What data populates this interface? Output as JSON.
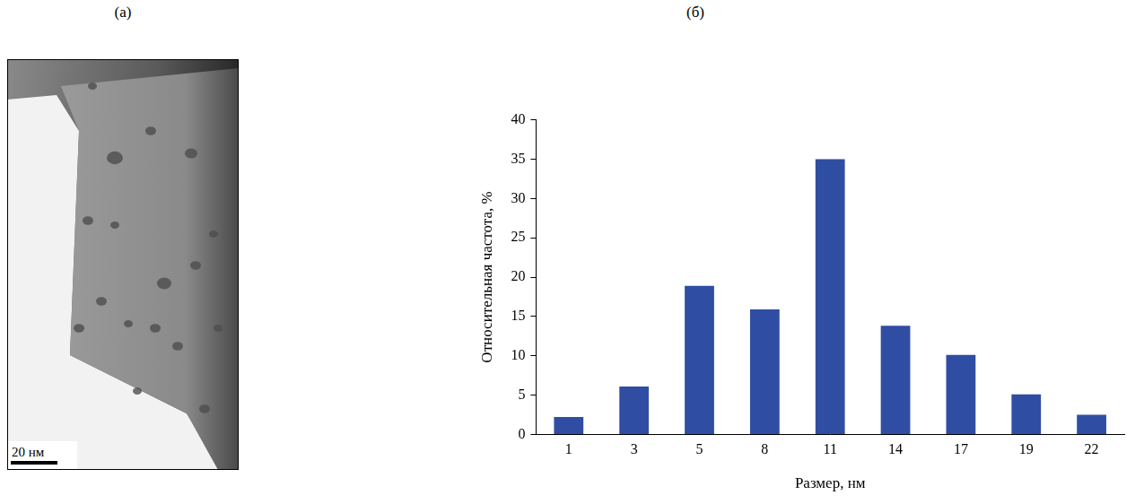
{
  "image_panel": {
    "label": "(а)",
    "scale_bar": "20 нм"
  },
  "chart_data": {
    "panel_label": "(б)",
    "type": "bar",
    "categories": [
      "1",
      "3",
      "5",
      "8",
      "11",
      "14",
      "17",
      "19",
      "22"
    ],
    "values": [
      2.2,
      6.1,
      18.9,
      15.9,
      35,
      13.8,
      10.1,
      5.1,
      2.5
    ],
    "color": "#2f4ea3",
    "x_label": "Размер, нм",
    "y_label": "Относительная частота, %",
    "ylim": [
      0,
      40
    ],
    "yticks": [
      0,
      5,
      10,
      15,
      20,
      25,
      30,
      35,
      40
    ],
    "grid": false
  }
}
